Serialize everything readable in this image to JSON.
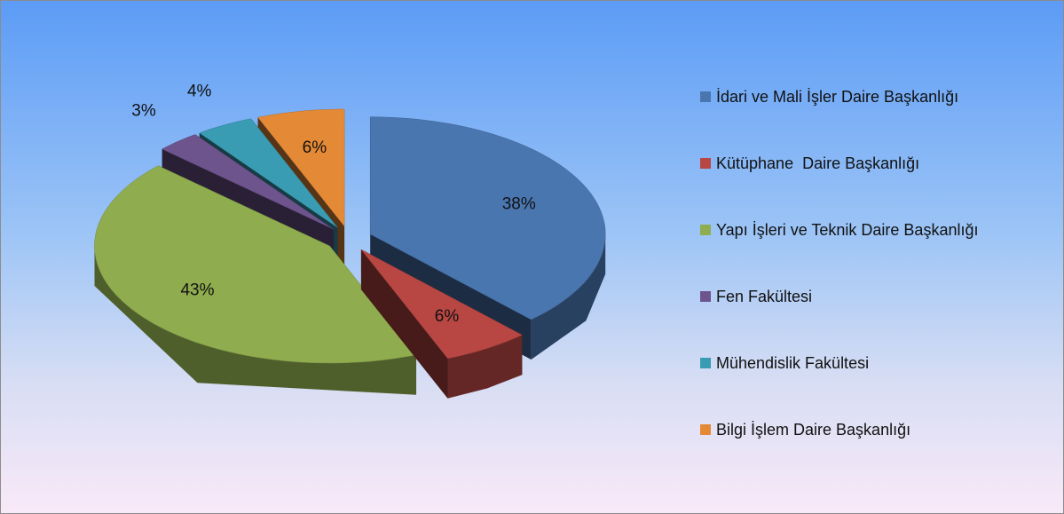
{
  "chart_data": {
    "type": "pie",
    "categories": [
      "İdari ve Mali İşler Daire Başkanlığı",
      "Kütüphane  Daire Başkanlığı",
      "Yapı İşleri ve Teknik Daire Başkanlığı",
      "Fen Fakültesi",
      "Mühendislik Fakültesi",
      "Bilgi İşlem Daire Başkanlığı"
    ],
    "values": [
      38,
      6,
      43,
      3,
      4,
      6
    ],
    "value_labels": [
      "38%",
      "6%",
      "43%",
      "3%",
      "4%",
      "6%"
    ],
    "colors": [
      "#4a76b0",
      "#b84743",
      "#8fad4f",
      "#6e548d",
      "#3a9cb3",
      "#e48a37"
    ],
    "legend": "right"
  }
}
